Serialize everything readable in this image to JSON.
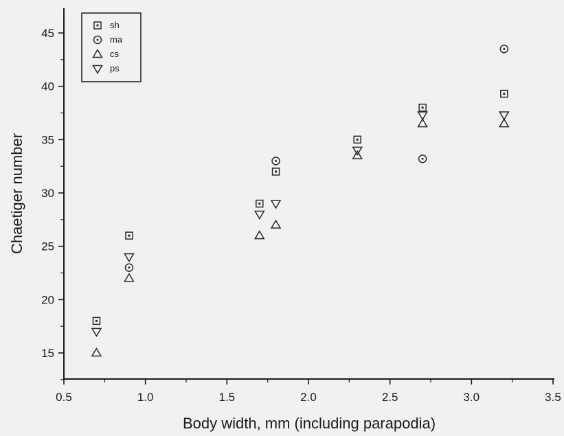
{
  "chart_data": {
    "type": "scatter",
    "xlabel": "Body width, mm (including parapodia)",
    "ylabel": "Chaetiger number",
    "xlim": [
      0.5,
      3.5
    ],
    "ylim": [
      12.5,
      47
    ],
    "x_ticks": [
      "0.5",
      "1.0",
      "1.5",
      "2.0",
      "2.5",
      "3.0",
      "3.5"
    ],
    "x_tick_values": [
      0.5,
      1.0,
      1.5,
      2.0,
      2.5,
      3.0,
      3.5
    ],
    "y_ticks": [
      "15",
      "20",
      "25",
      "30",
      "35",
      "40",
      "45"
    ],
    "y_tick_values": [
      15,
      20,
      25,
      30,
      35,
      40,
      45
    ],
    "legend_position": "top-left",
    "series": [
      {
        "name": "sh",
        "marker": "square-dot",
        "points": [
          [
            0.7,
            18
          ],
          [
            0.9,
            26
          ],
          [
            1.7,
            29
          ],
          [
            1.8,
            32
          ],
          [
            2.3,
            35
          ],
          [
            2.7,
            38
          ],
          [
            3.2,
            39.3
          ]
        ]
      },
      {
        "name": "ma",
        "marker": "circle-dot",
        "points": [
          [
            0.9,
            23
          ],
          [
            1.8,
            33
          ],
          [
            2.7,
            33.2
          ],
          [
            3.2,
            43.5
          ]
        ]
      },
      {
        "name": "cs",
        "marker": "triangle-up",
        "points": [
          [
            0.7,
            15
          ],
          [
            0.9,
            22
          ],
          [
            1.7,
            26
          ],
          [
            1.8,
            27
          ],
          [
            2.3,
            33.5
          ],
          [
            2.7,
            36.5
          ],
          [
            3.2,
            36.5
          ]
        ]
      },
      {
        "name": "ps",
        "marker": "triangle-down",
        "points": [
          [
            0.7,
            17
          ],
          [
            0.9,
            24
          ],
          [
            1.7,
            28
          ],
          [
            1.8,
            29
          ],
          [
            2.3,
            34
          ],
          [
            2.7,
            37.3
          ],
          [
            3.2,
            37.3
          ]
        ]
      }
    ]
  }
}
